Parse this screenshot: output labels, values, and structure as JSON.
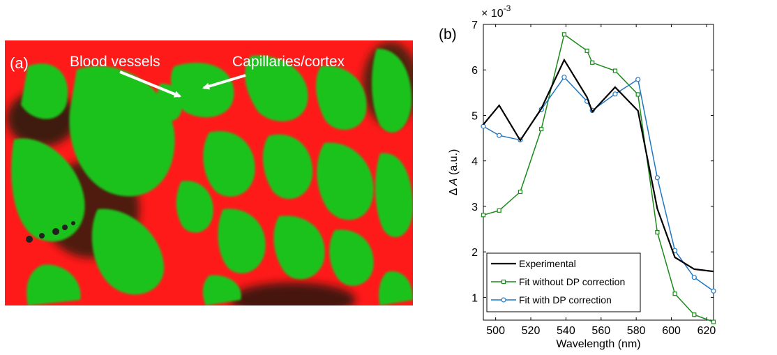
{
  "panel_a": {
    "label": "(a)",
    "annotation_vessels": "Blood vessels",
    "annotation_capillaries": "Capillaries/cortex",
    "colors": {
      "background": "#ff1a1a",
      "tissue": "#1fc21f",
      "dark": "#202020"
    }
  },
  "panel_b": {
    "label": "(b)"
  },
  "chart_data": {
    "type": "line",
    "xlabel": "Wavelength (nm)",
    "ylabel_prefix": "Δ ",
    "ylabel_var": "A",
    "ylabel_unit": " (a.u.)",
    "y_exponent": "× 10-3",
    "xlim": [
      493,
      624
    ],
    "ylim": [
      0.5,
      7
    ],
    "x_ticks": [
      500,
      520,
      540,
      560,
      580,
      600,
      620
    ],
    "y_ticks": [
      1,
      2,
      3,
      4,
      5,
      6,
      7
    ],
    "grid": false,
    "legend_position": "bottom-left",
    "series": [
      {
        "name": "Experimental",
        "color": "#000000",
        "marker": "none",
        "x": [
          493,
          502,
          514,
          526,
          539,
          552,
          555,
          568,
          581,
          592,
          602,
          613,
          624
        ],
        "y": [
          4.8,
          5.22,
          4.45,
          5.15,
          6.22,
          5.4,
          5.08,
          5.62,
          5.1,
          2.95,
          1.88,
          1.62,
          1.57
        ]
      },
      {
        "name": "Fit without DP correction",
        "color": "#1a8a1a",
        "marker": "square",
        "x": [
          493,
          502,
          514,
          526,
          539,
          552,
          555,
          568,
          581,
          592,
          602,
          613,
          624
        ],
        "y": [
          2.81,
          2.91,
          3.32,
          4.7,
          6.78,
          6.42,
          6.16,
          5.98,
          5.46,
          2.43,
          1.08,
          0.62,
          0.46
        ]
      },
      {
        "name": "Fit with DP correction",
        "color": "#1f77c4",
        "marker": "circle",
        "x": [
          493,
          502,
          514,
          526,
          539,
          552,
          555,
          568,
          581,
          592,
          602,
          613,
          624
        ],
        "y": [
          4.76,
          4.56,
          4.46,
          5.13,
          5.84,
          5.31,
          5.11,
          5.47,
          5.79,
          3.63,
          2.03,
          1.44,
          1.14
        ]
      }
    ]
  }
}
